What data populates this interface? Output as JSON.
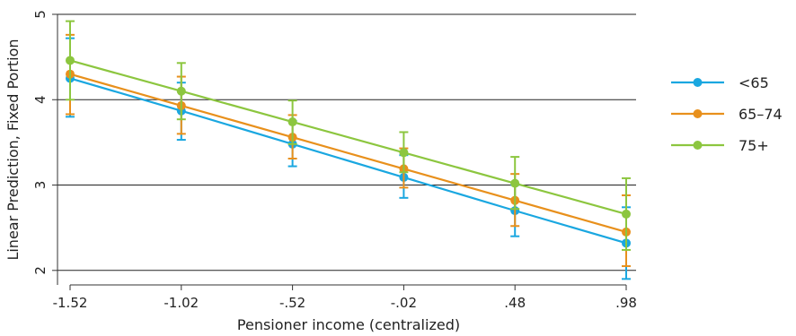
{
  "chart_data": {
    "type": "line",
    "title": "",
    "xlabel": "Pensioner income (centralized)",
    "ylabel": "Linear Prediction, Fixed Portion",
    "x": [
      -1.52,
      -1.02,
      -0.52,
      -0.02,
      0.48,
      0.98
    ],
    "x_tick_labels": [
      "-1.52",
      "-1.02",
      "-.52",
      "-.02",
      ".48",
      ".98"
    ],
    "y_ticks": [
      2,
      3,
      4,
      5
    ],
    "y_tick_labels": [
      "2",
      "3",
      "4",
      "5"
    ],
    "xlim": [
      -1.52,
      0.98
    ],
    "ylim": [
      1.83,
      5.0
    ],
    "grid": "horizontal",
    "legend_position": "right",
    "series": [
      {
        "name": "<65",
        "color": "#1aa7e0",
        "values": [
          4.25,
          3.87,
          3.48,
          3.09,
          2.7,
          2.32
        ],
        "ci_low": [
          3.8,
          3.53,
          3.22,
          2.85,
          2.4,
          1.9
        ],
        "ci_high": [
          4.72,
          4.2,
          3.75,
          3.35,
          3.0,
          2.74
        ]
      },
      {
        "name": "65–74",
        "color": "#e8901c",
        "values": [
          4.3,
          3.93,
          3.56,
          3.19,
          2.82,
          2.45
        ],
        "ci_low": [
          3.83,
          3.6,
          3.31,
          2.97,
          2.52,
          2.05
        ],
        "ci_high": [
          4.76,
          4.27,
          3.82,
          3.43,
          3.13,
          2.88
        ]
      },
      {
        "name": "75+",
        "color": "#8cc63f",
        "values": [
          4.46,
          4.1,
          3.74,
          3.38,
          3.02,
          2.66
        ],
        "ci_low": [
          4.0,
          3.77,
          3.48,
          3.15,
          2.72,
          2.24
        ],
        "ci_high": [
          4.92,
          4.43,
          3.99,
          3.62,
          3.33,
          3.08
        ]
      }
    ]
  }
}
